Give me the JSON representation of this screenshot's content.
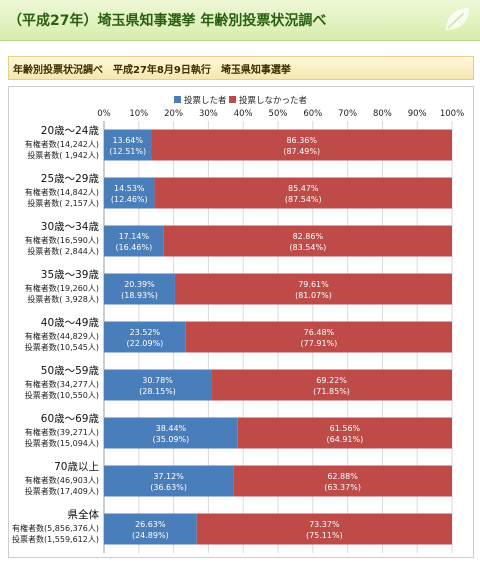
{
  "header": {
    "title": "（平成27年）埼玉県知事選挙 年齢別投票状況調べ"
  },
  "subheader": {
    "text": "年齢別投票状況調べ　平成27年8月9日執行　埼玉県知事選挙"
  },
  "colors": {
    "voted": "#4a7ebb",
    "not_voted": "#be4b48"
  },
  "chart_data": {
    "type": "bar",
    "orientation": "horizontal",
    "stacked": true,
    "xlim": [
      0,
      100
    ],
    "x_ticks": [
      "0%",
      "10%",
      "20%",
      "30%",
      "40%",
      "50%",
      "60%",
      "70%",
      "80%",
      "90%",
      "100%"
    ],
    "legend_position": "top",
    "categories": [
      {
        "name": "20歳〜24歳",
        "eligible": "有権者数(14,242人)",
        "voters": "投票者数( 1,942人)"
      },
      {
        "name": "25歳〜29歳",
        "eligible": "有権者数(14,842人)",
        "voters": "投票者数( 2,157人)"
      },
      {
        "name": "30歳〜34歳",
        "eligible": "有権者数(16,590人)",
        "voters": "投票者数( 2,844人)"
      },
      {
        "name": "35歳〜39歳",
        "eligible": "有権者数(19,260人)",
        "voters": "投票者数( 3,928人)"
      },
      {
        "name": "40歳〜49歳",
        "eligible": "有権者数(44,829人)",
        "voters": "投票者数(10,545人)"
      },
      {
        "name": "50歳〜59歳",
        "eligible": "有権者数(34,277人)",
        "voters": "投票者数(10,550人)"
      },
      {
        "name": "60歳〜69歳",
        "eligible": "有権者数(39,271人)",
        "voters": "投票者数(15,094人)"
      },
      {
        "name": "70歳以上",
        "eligible": "有権者数(46,903人)",
        "voters": "投票者数(17,409人)"
      },
      {
        "name": "県全体",
        "eligible": "有権者数(5,856,376人)",
        "voters": "投票者数(1,559,612人)"
      }
    ],
    "series": [
      {
        "name": "投票した者",
        "values": [
          13.64,
          14.53,
          17.14,
          20.39,
          23.52,
          30.78,
          38.44,
          37.12,
          26.63
        ],
        "labels": [
          "13.64%",
          "14.53%",
          "17.14%",
          "20.39%",
          "23.52%",
          "30.78%",
          "38.44%",
          "37.12%",
          "26.63%"
        ],
        "sub_labels": [
          "(12.51%)",
          "(12.46%)",
          "(16.46%)",
          "(18.93%)",
          "(22.09%)",
          "(28.15%)",
          "(35.09%)",
          "(36.63%)",
          "(24.89%)"
        ]
      },
      {
        "name": "投票しなかった者",
        "values": [
          86.36,
          85.47,
          82.86,
          79.61,
          76.48,
          69.22,
          61.56,
          62.88,
          73.37
        ],
        "labels": [
          "86.36%",
          "85.47%",
          "82.86%",
          "79.61%",
          "76.48%",
          "69.22%",
          "61.56%",
          "62.88%",
          "73.37%"
        ],
        "sub_labels": [
          "(87.49%)",
          "(87.54%)",
          "(83.54%)",
          "(81.07%)",
          "(77.91%)",
          "(71.85%)",
          "(64.91%)",
          "(63.37%)",
          "(75.11%)"
        ]
      }
    ]
  }
}
